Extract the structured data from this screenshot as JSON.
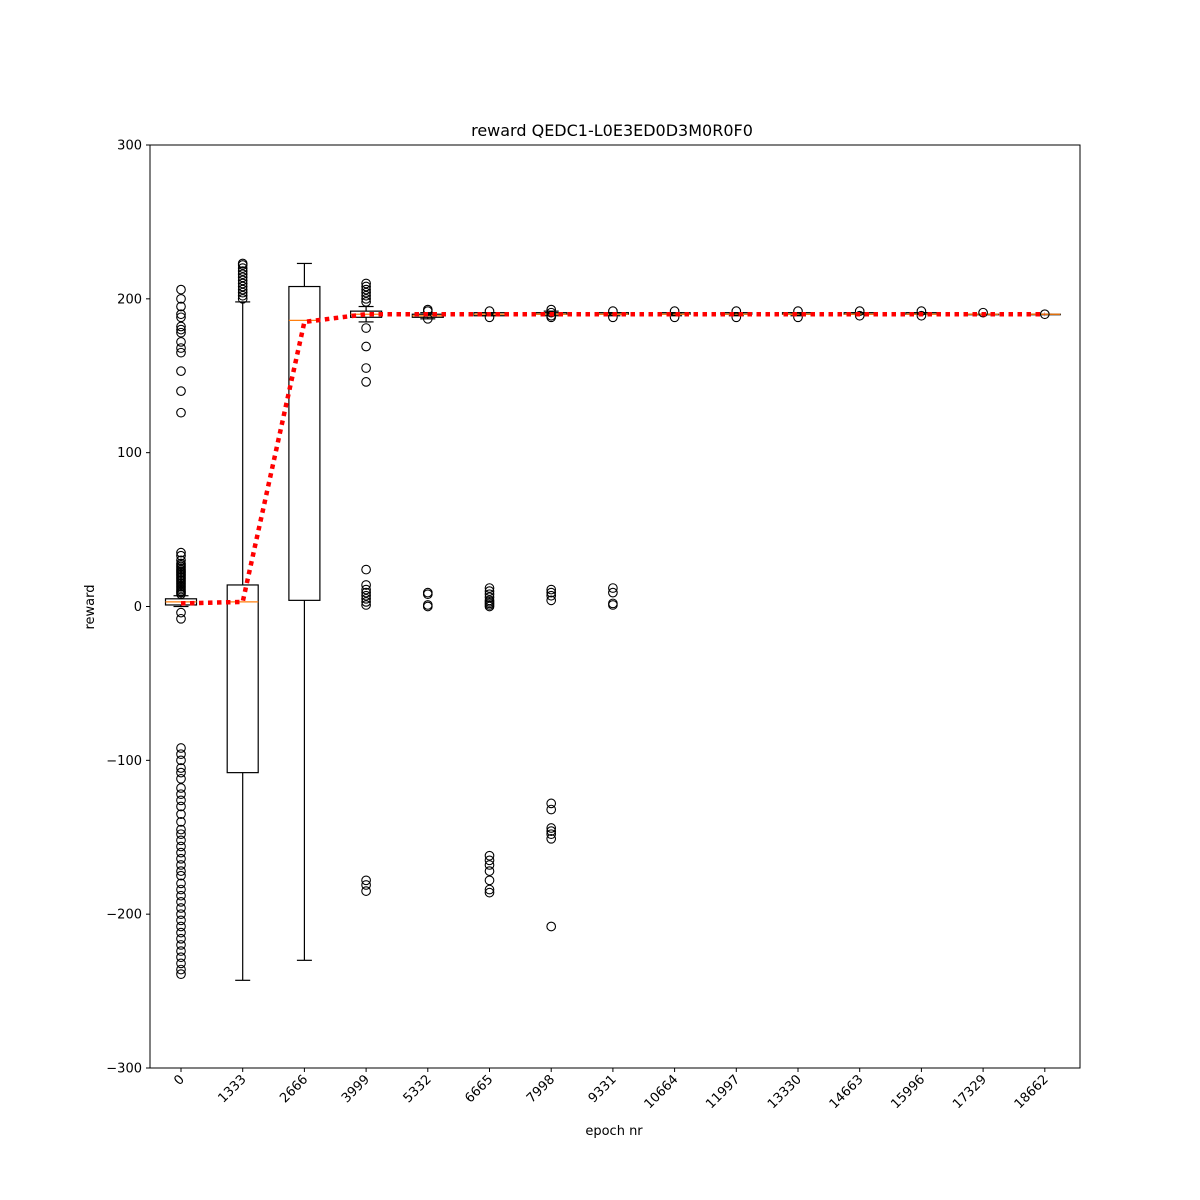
{
  "chart_data": {
    "type": "boxplot",
    "title": "reward QEDC1-L0E3ED0D3M0R0F0",
    "xlabel": "epoch nr",
    "ylabel": "reward",
    "ylim": [
      -300,
      300
    ],
    "yticks": [
      -300,
      -200,
      -100,
      0,
      100,
      200,
      300
    ],
    "categories": [
      "0",
      "1333",
      "2666",
      "3999",
      "5332",
      "6665",
      "7998",
      "9331",
      "10664",
      "11997",
      "13330",
      "14663",
      "15996",
      "17329",
      "18662"
    ],
    "boxes": [
      {
        "q1": 1,
        "median": 3,
        "q3": 5,
        "whisker_low": 0,
        "whisker_high": 7,
        "outliers": [
          206,
          200,
          195,
          190,
          188,
          182,
          180,
          178,
          172,
          168,
          165,
          153,
          140,
          126,
          35,
          33,
          30,
          28,
          27,
          26,
          25,
          24,
          23,
          22,
          21,
          20,
          19,
          18,
          17,
          16,
          15,
          14,
          13,
          12,
          11,
          10,
          9,
          8,
          -4,
          -8,
          -92,
          -96,
          -100,
          -105,
          -108,
          -112,
          -118,
          -122,
          -126,
          -130,
          -135,
          -140,
          -145,
          -148,
          -152,
          -156,
          -160,
          -164,
          -168,
          -172,
          -175,
          -180,
          -184,
          -188,
          -192,
          -196,
          -200,
          -204,
          -208,
          -212,
          -216,
          -220,
          -224,
          -228,
          -232,
          -236,
          -239
        ]
      },
      {
        "q1": -108,
        "median": 3,
        "q3": 14,
        "whisker_low": -243,
        "whisker_high": 198,
        "outliers": [
          200,
          202,
          204,
          206,
          208,
          210,
          212,
          214,
          216,
          218,
          220,
          222,
          223
        ]
      },
      {
        "q1": 4,
        "median": 186,
        "q3": 208,
        "whisker_low": -230,
        "whisker_high": 223,
        "outliers": []
      },
      {
        "q1": 188,
        "median": 190,
        "q3": 192,
        "whisker_low": 185,
        "whisker_high": 195,
        "outliers": [
          210,
          208,
          206,
          204,
          202,
          200,
          198,
          181,
          169,
          155,
          146,
          24,
          14,
          11,
          9,
          7,
          5,
          3,
          1,
          -178,
          -181,
          -185
        ]
      },
      {
        "q1": 188,
        "median": 189,
        "q3": 190,
        "whisker_low": 187,
        "whisker_high": 191,
        "outliers": [
          193,
          192,
          187,
          9,
          8,
          1,
          0
        ]
      },
      {
        "q1": 189,
        "median": 190,
        "q3": 191,
        "whisker_low": 189,
        "whisker_high": 191,
        "outliers": [
          192,
          188,
          12,
          10,
          8,
          6,
          4,
          3,
          2,
          1,
          0,
          -162,
          -165,
          -168,
          -172,
          -178,
          -184,
          -186
        ]
      },
      {
        "q1": 190,
        "median": 190,
        "q3": 191,
        "whisker_low": 189,
        "whisker_high": 192,
        "outliers": [
          193,
          191,
          189,
          188,
          11,
          9,
          7,
          4,
          -128,
          -132,
          -144,
          -146,
          -148,
          -151,
          -208
        ]
      },
      {
        "q1": 190,
        "median": 190,
        "q3": 191,
        "whisker_low": 189,
        "whisker_high": 191,
        "outliers": [
          192,
          188,
          12,
          9,
          2,
          1
        ]
      },
      {
        "q1": 190,
        "median": 190,
        "q3": 191,
        "whisker_low": 189,
        "whisker_high": 191,
        "outliers": [
          192,
          188
        ]
      },
      {
        "q1": 190,
        "median": 190,
        "q3": 191,
        "whisker_low": 189,
        "whisker_high": 191,
        "outliers": [
          192,
          188
        ]
      },
      {
        "q1": 190,
        "median": 190,
        "q3": 191,
        "whisker_low": 189,
        "whisker_high": 191,
        "outliers": [
          192,
          188
        ]
      },
      {
        "q1": 190,
        "median": 190,
        "q3": 191,
        "whisker_low": 190,
        "whisker_high": 191,
        "outliers": [
          192,
          189
        ]
      },
      {
        "q1": 190,
        "median": 190,
        "q3": 191,
        "whisker_low": 190,
        "whisker_high": 191,
        "outliers": [
          192,
          189
        ]
      },
      {
        "q1": 190,
        "median": 190,
        "q3": 190,
        "whisker_low": 190,
        "whisker_high": 190,
        "outliers": [
          191
        ]
      },
      {
        "q1": 190,
        "median": 190,
        "q3": 190,
        "whisker_low": 190,
        "whisker_high": 190,
        "outliers": [
          190
        ]
      }
    ],
    "mean_line": {
      "values": [
        2,
        3,
        185,
        190,
        190,
        190,
        190,
        190,
        190,
        190,
        190,
        190,
        190,
        190,
        190
      ],
      "color": "#ff0000",
      "style": "dotted"
    },
    "colors": {
      "box": "#000000",
      "median": "#ff7f0e",
      "outlier": "#000000"
    },
    "grid": false
  }
}
